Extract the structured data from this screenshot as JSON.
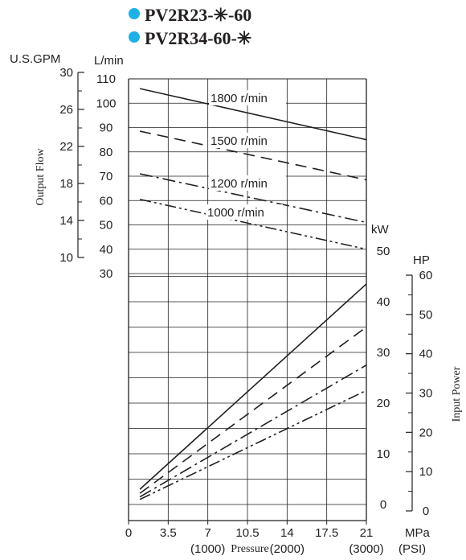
{
  "titles": [
    {
      "text": "PV2R23-✳-60",
      "bullet_color": "#1fb1e6"
    },
    {
      "text": "PV2R34-60-✳",
      "bullet_color": "#1fb1e6"
    }
  ],
  "axis_titles": {
    "gpm_unit": "U.S.GPM",
    "lmin_unit": "L/min",
    "output_flow": "Output Flow",
    "kw_unit": "kW",
    "hp_unit": "HP",
    "input_power": "Input Power",
    "mpa_unit": "MPa",
    "psi_unit": "(PSI)",
    "pressure": "Pressure"
  },
  "chart_data": {
    "type": "line",
    "title": "PV2R23-✳-60 / PV2R34-60-✳",
    "xlabel": "Pressure",
    "x_unit": "MPa",
    "xlim": [
      0,
      21
    ],
    "x_ticks": [
      "0",
      "3.5",
      "7",
      "10.5",
      "14",
      "17.5",
      "21"
    ],
    "x_psi_ticks": [
      {
        "mpa": 7,
        "label": "(1000)"
      },
      {
        "mpa": 14,
        "label": "(2000)"
      },
      {
        "mpa": 21,
        "label": "(3000)"
      }
    ],
    "flow_axis": {
      "label": "Output Flow",
      "unit": "L/min",
      "ylim": [
        30,
        110
      ],
      "ticks": [
        "30",
        "40",
        "50",
        "60",
        "70",
        "80",
        "90",
        "100",
        "110"
      ],
      "gpm_ticks": [
        {
          "gpm": 30,
          "label": "30"
        },
        {
          "gpm": 26,
          "label": "26"
        },
        {
          "gpm": 22,
          "label": "22"
        },
        {
          "gpm": 18,
          "label": "18"
        },
        {
          "gpm": 14,
          "label": "14"
        },
        {
          "gpm": 10,
          "label": "10"
        }
      ],
      "series": [
        {
          "name": "1800 r/min",
          "dash": "solid",
          "x": [
            1,
            21
          ],
          "y": [
            106,
            85
          ]
        },
        {
          "name": "1500 r/min",
          "dash": "dashed",
          "x": [
            1,
            21
          ],
          "y": [
            88.5,
            68.5
          ]
        },
        {
          "name": "1200 r/min",
          "dash": "dashdot",
          "x": [
            1,
            21
          ],
          "y": [
            71,
            51
          ]
        },
        {
          "name": "1000 r/min",
          "dash": "dashdotdot",
          "x": [
            1,
            21
          ],
          "y": [
            60.5,
            40
          ]
        }
      ]
    },
    "power_axis": {
      "label": "Input Power",
      "unit": "kW",
      "ylim": [
        0,
        50
      ],
      "kw_ticks": [
        "0",
        "10",
        "20",
        "30",
        "40",
        "50"
      ],
      "hp_ticks": [
        "0",
        "10",
        "20",
        "30",
        "40",
        "50",
        "60"
      ],
      "series": [
        {
          "name": "1800 r/min",
          "dash": "solid",
          "x": [
            1,
            21
          ],
          "y": [
            3,
            43.5
          ]
        },
        {
          "name": "1500 r/min",
          "dash": "dashed",
          "x": [
            1,
            21
          ],
          "y": [
            2.2,
            35
          ]
        },
        {
          "name": "1200 r/min",
          "dash": "dashdot",
          "x": [
            1,
            21
          ],
          "y": [
            1.5,
            27.5
          ]
        },
        {
          "name": "1000 r/min",
          "dash": "dashdotdot",
          "x": [
            1,
            21
          ],
          "y": [
            1,
            22.5
          ]
        }
      ]
    },
    "grid": true
  }
}
